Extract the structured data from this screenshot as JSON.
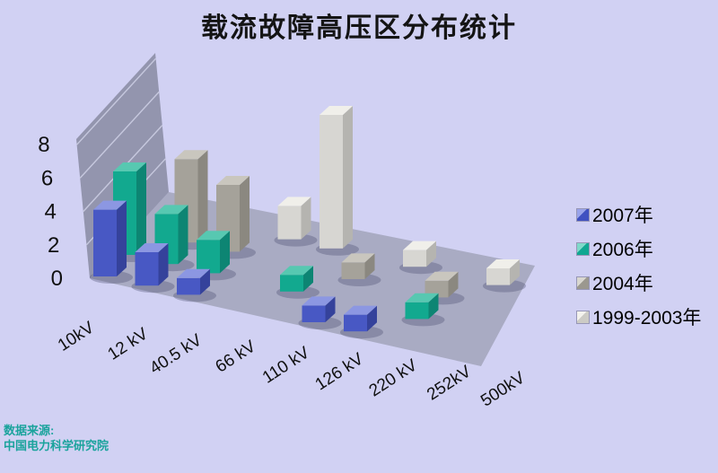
{
  "page": {
    "background": "#d1d1f3"
  },
  "title": "载流故障高压区分布统计",
  "source": {
    "line1": "数据来源:",
    "line2": "中国电力科学研究院",
    "color": "#1aa39c"
  },
  "legend": {
    "items": [
      {
        "label": "2007年",
        "color": "#3f51c1",
        "light": "#9aa4ea"
      },
      {
        "label": "2006年",
        "color": "#10a792",
        "light": "#7fd9c9"
      },
      {
        "label": "2004年",
        "color": "#9b988f",
        "light": "#d9d7d0"
      },
      {
        "label": "1999-2003年",
        "color": "#cccbc5",
        "light": "#f3f2ed"
      }
    ]
  },
  "chart_data": {
    "type": "bar",
    "variant": "3d-column",
    "title": "载流故障高压区分布统计",
    "categories": [
      "10kV",
      "12 kV",
      "40.5 kV",
      "66 kV",
      "110 kV",
      "126 kV",
      "220 kV",
      "252kV",
      "500kV"
    ],
    "series": [
      {
        "name": "2007年",
        "values": [
          4,
          2,
          1,
          0,
          0,
          1,
          1,
          0,
          0
        ],
        "front": "#4858c4",
        "side": "#35429b",
        "top": "#8c97e2"
      },
      {
        "name": "2006年",
        "values": [
          5,
          3,
          2,
          0,
          1,
          0,
          0,
          1,
          0
        ],
        "front": "#12a98f",
        "side": "#0d8573",
        "top": "#57c8b1"
      },
      {
        "name": "2004年",
        "values": [
          0,
          5,
          4,
          0,
          0,
          1,
          0,
          1,
          0
        ],
        "front": "#a5a29a",
        "side": "#8b8880",
        "top": "#c9c6be"
      },
      {
        "name": "1999-2003年",
        "values": [
          0,
          0,
          0,
          2,
          8,
          0,
          1,
          0,
          1
        ],
        "front": "#d7d6d2",
        "side": "#b5b4b0",
        "top": "#f0efea"
      }
    ],
    "y_ticks": [
      0,
      2,
      4,
      6,
      8
    ],
    "ylim": [
      0,
      8
    ],
    "grid": true,
    "legend_position": "right",
    "style": {
      "wall": "#9395ae",
      "floor": "#a9abc3",
      "gridline": "#c6c8de",
      "shadow": "rgba(70,72,105,0.33)"
    }
  }
}
